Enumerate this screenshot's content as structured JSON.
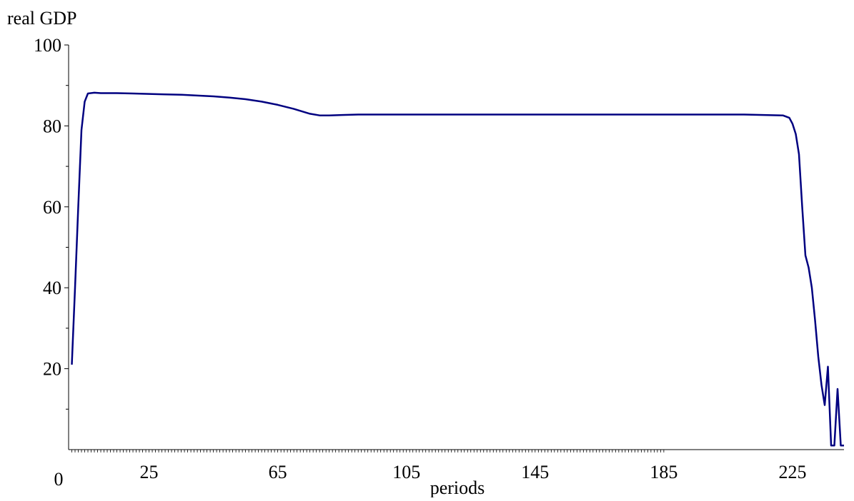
{
  "chart_data": {
    "type": "line",
    "title": "",
    "xlabel": "periods",
    "ylabel": "real GDP",
    "xlim": [
      0,
      241
    ],
    "ylim": [
      0,
      100
    ],
    "x_tick_labels": [
      "0",
      "25",
      "65",
      "105",
      "145",
      "185",
      "225"
    ],
    "y_tick_labels": [
      "20",
      "40",
      "60",
      "80",
      "100"
    ],
    "grid": false,
    "line_color": "#000080",
    "series": [
      {
        "x": [
          1,
          2,
          3,
          4,
          5,
          6,
          8,
          10,
          15,
          20,
          25,
          30,
          35,
          40,
          45,
          50,
          55,
          60,
          65,
          70,
          75,
          78,
          81,
          85,
          90,
          95,
          100,
          110,
          130,
          150,
          170,
          190,
          210,
          222,
          224,
          225,
          226,
          227,
          228,
          229,
          230,
          231,
          232,
          233,
          234,
          235,
          236,
          237,
          238,
          239,
          240,
          241
        ],
        "y": [
          21,
          40,
          60,
          79,
          86,
          88,
          88.2,
          88.1,
          88.1,
          88,
          87.9,
          87.8,
          87.7,
          87.5,
          87.3,
          87,
          86.6,
          86,
          85.2,
          84.2,
          83,
          82.6,
          82.6,
          82.7,
          82.8,
          82.8,
          82.8,
          82.8,
          82.8,
          82.8,
          82.8,
          82.8,
          82.8,
          82.6,
          82,
          80.5,
          78,
          73,
          60,
          48,
          45,
          40,
          32,
          23,
          16,
          11,
          20.5,
          1,
          1,
          15,
          1,
          1
        ]
      }
    ]
  }
}
